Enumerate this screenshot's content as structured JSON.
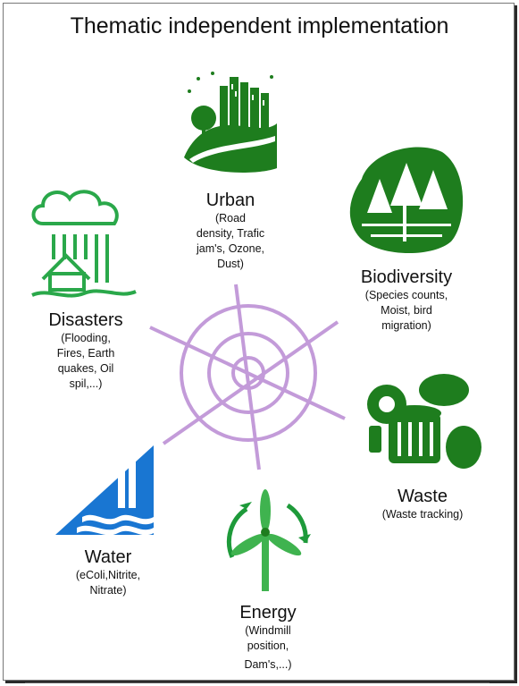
{
  "title": "Thematic independent implementation",
  "colors": {
    "green": "#1e7d1e",
    "blue": "#1976d2",
    "web": "#c39bd9"
  },
  "themes": [
    {
      "name": "Urban",
      "desc": [
        "(Road",
        "density, Trafic",
        "jam's, Ozone,",
        "Dust)"
      ],
      "icon": "city-icon"
    },
    {
      "name": "Biodiversity",
      "desc": [
        "(Species counts,",
        "Moist,  bird",
        "migration)"
      ],
      "icon": "forest-icon"
    },
    {
      "name": "Waste",
      "desc": [
        "(Waste tracking)"
      ],
      "icon": "waste-bin-icon"
    },
    {
      "name": "Energy",
      "desc": [
        "(Windmill",
        "position,",
        "Dam's,...)"
      ],
      "icon": "windmill-icon"
    },
    {
      "name": "Water",
      "desc": [
        "(eColi,Nitrite,",
        "Nitrate)"
      ],
      "icon": "water-tap-icon"
    },
    {
      "name": "Disasters",
      "desc": [
        "(Flooding,",
        "Fires, Earth",
        "quakes, Oil",
        "spil,...)"
      ],
      "icon": "storm-icon"
    }
  ]
}
